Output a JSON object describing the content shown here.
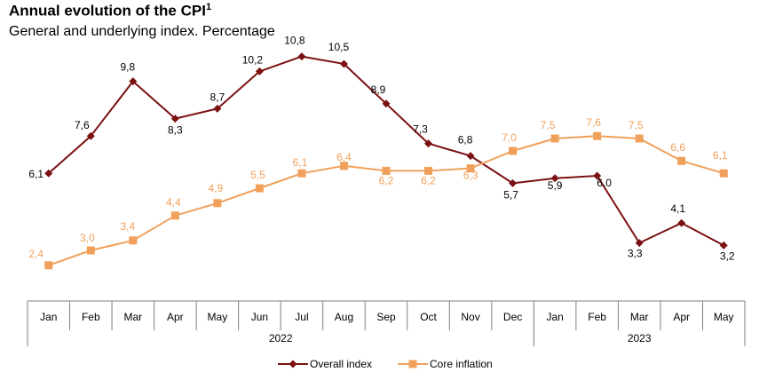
{
  "header": {
    "title": "Annual evolution of the CPI",
    "title_note": "1",
    "subtitle": "General and underlying index. Percentage"
  },
  "chart_data": {
    "type": "line",
    "categories": [
      "Jan",
      "Feb",
      "Mar",
      "Apr",
      "May",
      "Jun",
      "Jul",
      "Aug",
      "Sep",
      "Oct",
      "Nov",
      "Dec",
      "Jan",
      "Feb",
      "Mar",
      "Apr",
      "May"
    ],
    "year_groups": [
      {
        "label": "2022",
        "start": 0,
        "end": 11
      },
      {
        "label": "2023",
        "start": 12,
        "end": 16
      }
    ],
    "series": [
      {
        "name": "Overall index",
        "color": "#7b1113",
        "marker": "diamond",
        "values": [
          6.1,
          7.6,
          9.8,
          8.3,
          8.7,
          10.2,
          10.8,
          10.5,
          8.9,
          7.3,
          6.8,
          5.7,
          5.9,
          6.0,
          3.3,
          4.1,
          3.2
        ],
        "labels": [
          "6,1",
          "7,6",
          "9,8",
          "8,3",
          "8,7",
          "10,2",
          "10,8",
          "10,5",
          "8,9",
          "7,3",
          "6,8",
          "5,7",
          "5,9",
          "6,0",
          "3,3",
          "4,1",
          "3,2"
        ]
      },
      {
        "name": "Core inflation",
        "color": "#f0a05a",
        "marker": "square",
        "values": [
          2.4,
          3.0,
          3.4,
          4.4,
          4.9,
          5.5,
          6.1,
          6.4,
          6.2,
          6.2,
          6.3,
          7.0,
          7.5,
          7.6,
          7.5,
          6.6,
          6.1
        ],
        "labels": [
          "2,4",
          "3,0",
          "3,4",
          "4,4",
          "4,9",
          "5,5",
          "6,1",
          "6,4",
          "6,2",
          "6,2",
          "6,3",
          "7,0",
          "7,5",
          "7,6",
          "7,5",
          "6,6",
          "6,1"
        ]
      }
    ],
    "ylim": [
      1.0,
      11.5
    ],
    "grid": false,
    "legend": "bottom-center"
  }
}
